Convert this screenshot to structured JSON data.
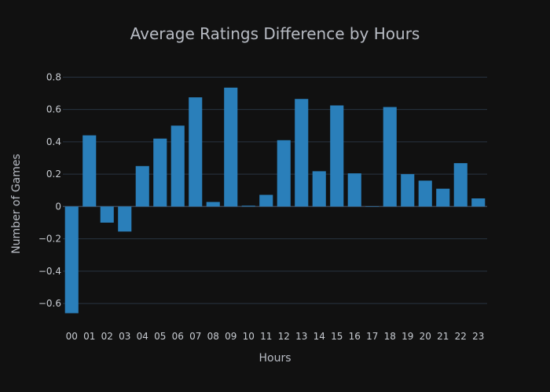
{
  "chart_data": {
    "type": "bar",
    "title": "Average Ratings Difference by Hours",
    "xlabel": "Hours",
    "ylabel": "Number of Games",
    "categories": [
      "00",
      "01",
      "02",
      "03",
      "04",
      "05",
      "06",
      "07",
      "08",
      "09",
      "10",
      "11",
      "12",
      "13",
      "14",
      "15",
      "16",
      "17",
      "18",
      "19",
      "20",
      "21",
      "22",
      "23"
    ],
    "values": [
      -0.66,
      0.44,
      -0.1,
      -0.155,
      0.25,
      0.42,
      0.5,
      0.675,
      0.028,
      0.735,
      0.005,
      0.072,
      0.41,
      0.665,
      0.218,
      0.625,
      0.205,
      0.0,
      0.615,
      0.2,
      0.16,
      0.11,
      0.268,
      0.05
    ],
    "ylim": [
      -0.74,
      0.86
    ],
    "yticks": [
      -0.6,
      -0.4,
      -0.2,
      0,
      0.2,
      0.4,
      0.6,
      0.8
    ],
    "ytick_labels": [
      "−0.6",
      "−0.4",
      "−0.2",
      "0",
      "0.2",
      "0.4",
      "0.6",
      "0.8"
    ],
    "grid": true,
    "colors": {
      "bar": "#2a7fba",
      "background": "#111111",
      "grid": "#283442"
    }
  }
}
